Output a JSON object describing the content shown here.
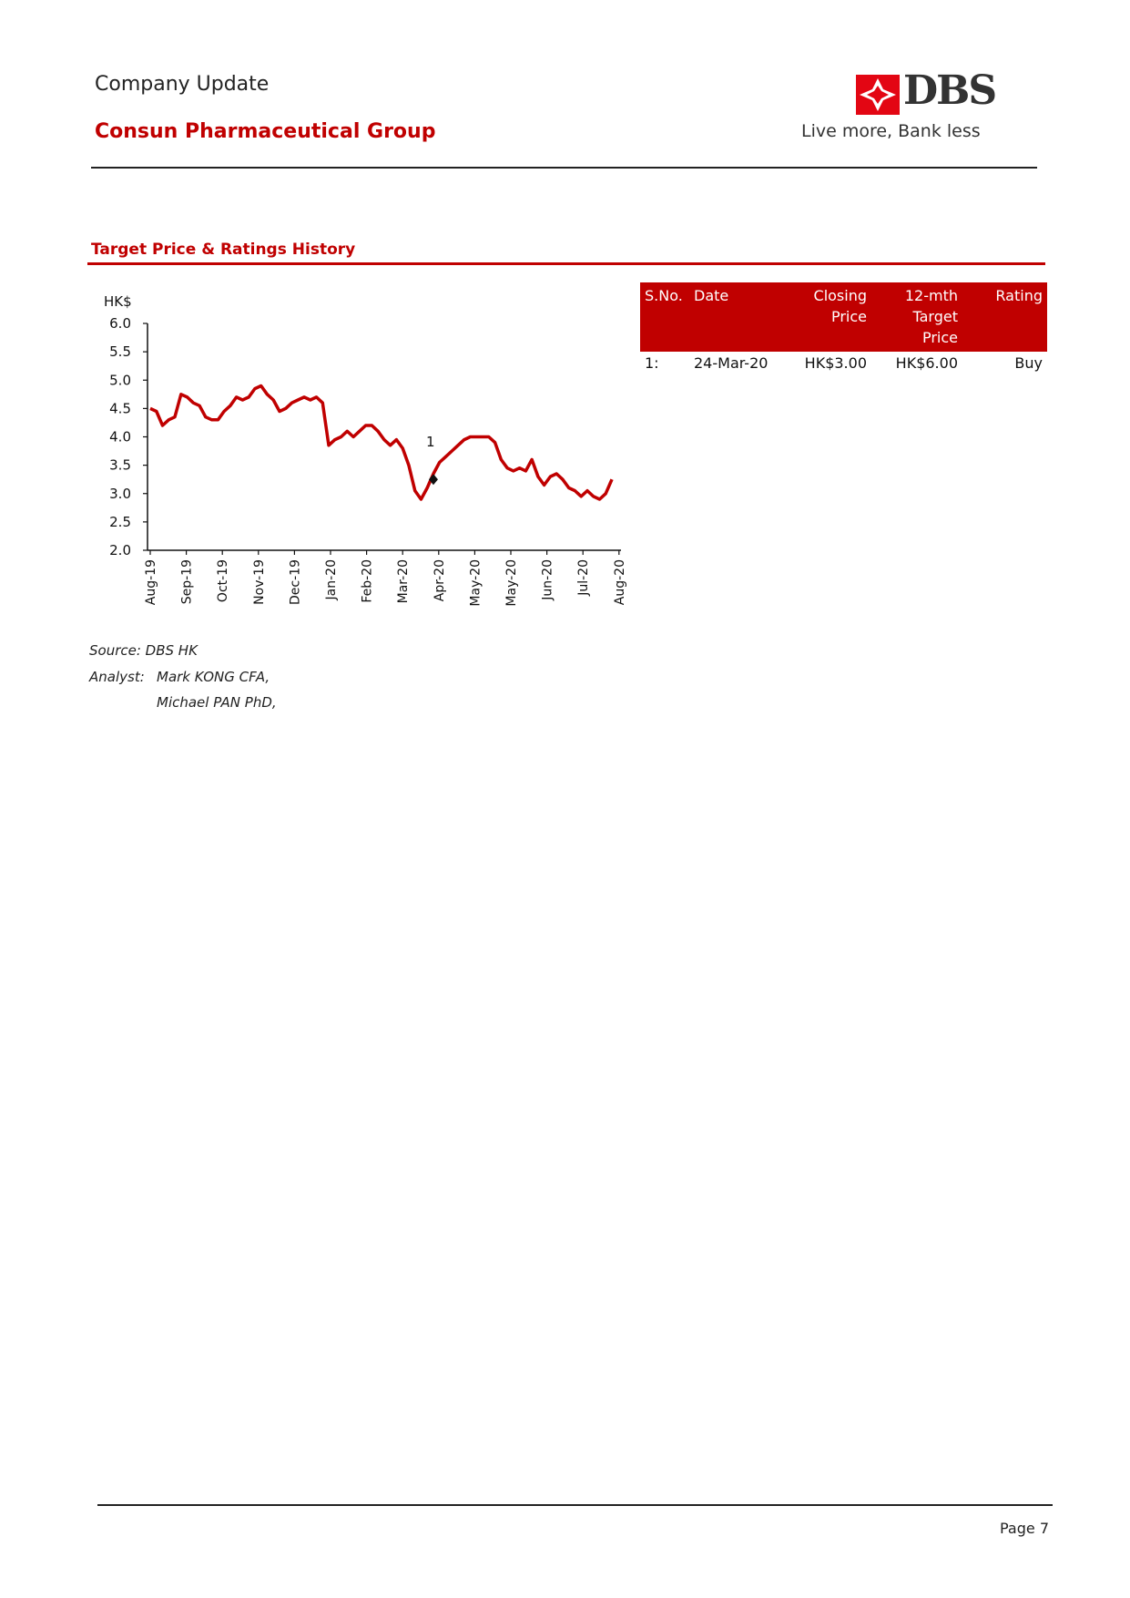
{
  "header": {
    "doc_type": "Company Update",
    "company": "Consun Pharmaceutical Group",
    "logo_text": "DBS",
    "tagline": "Live more, Bank less"
  },
  "section": {
    "title": "Target Price & Ratings History"
  },
  "chart_data": {
    "type": "line",
    "title": "",
    "ylabel": "HK$",
    "xlabel": "",
    "ylim": [
      2.0,
      6.0
    ],
    "yticks": [
      "2.0",
      "2.5",
      "3.0",
      "3.5",
      "4.0",
      "4.5",
      "5.0",
      "5.5",
      "6.0"
    ],
    "x_tick_labels": [
      "Aug-19",
      "Sep-19",
      "Oct-19",
      "Nov-19",
      "Dec-19",
      "Jan-20",
      "Feb-20",
      "Mar-20",
      "Apr-20",
      "May-20",
      "May-20",
      "Jun-20",
      "Jul-20",
      "Aug-20"
    ],
    "grid": false,
    "series": [
      {
        "color": "#c00000",
        "values": [
          4.5,
          4.45,
          4.2,
          4.3,
          4.35,
          4.75,
          4.7,
          4.6,
          4.55,
          4.35,
          4.3,
          4.3,
          4.45,
          4.55,
          4.7,
          4.65,
          4.7,
          4.85,
          4.9,
          4.75,
          4.65,
          4.45,
          4.5,
          4.6,
          4.65,
          4.7,
          4.65,
          4.7,
          4.6,
          3.85,
          3.95,
          4.0,
          4.1,
          4.0,
          4.1,
          4.2,
          4.2,
          4.1,
          3.95,
          3.85,
          3.95,
          3.8,
          3.5,
          3.05,
          2.9,
          3.1,
          3.35,
          3.55,
          3.65,
          3.75,
          3.85,
          3.95,
          4.0,
          4.0,
          4.0,
          4.0,
          3.9,
          3.6,
          3.45,
          3.4,
          3.45,
          3.4,
          3.6,
          3.3,
          3.15,
          3.3,
          3.35,
          3.25,
          3.1,
          3.05,
          2.95,
          3.05,
          2.95,
          2.9,
          3.0,
          3.25
        ]
      }
    ],
    "annotations": [
      {
        "label": "1",
        "x": "24-Mar-20",
        "y": 3.25
      }
    ]
  },
  "table": {
    "headers": [
      "S.No.",
      "Date",
      "Closing Price",
      "12-mth Target Price",
      "Rating"
    ],
    "rows": [
      [
        "1:",
        "24-Mar-20",
        "HK$3.00",
        "HK$6.00",
        "Buy"
      ]
    ]
  },
  "footer": {
    "source": "Source: DBS HK",
    "analyst_label": "Analyst:",
    "analysts": [
      "Mark KONG CFA,",
      "Michael PAN PhD,"
    ],
    "page": "Page 7"
  },
  "colors": {
    "accent": "#c00000",
    "text": "#1a1a1a"
  }
}
